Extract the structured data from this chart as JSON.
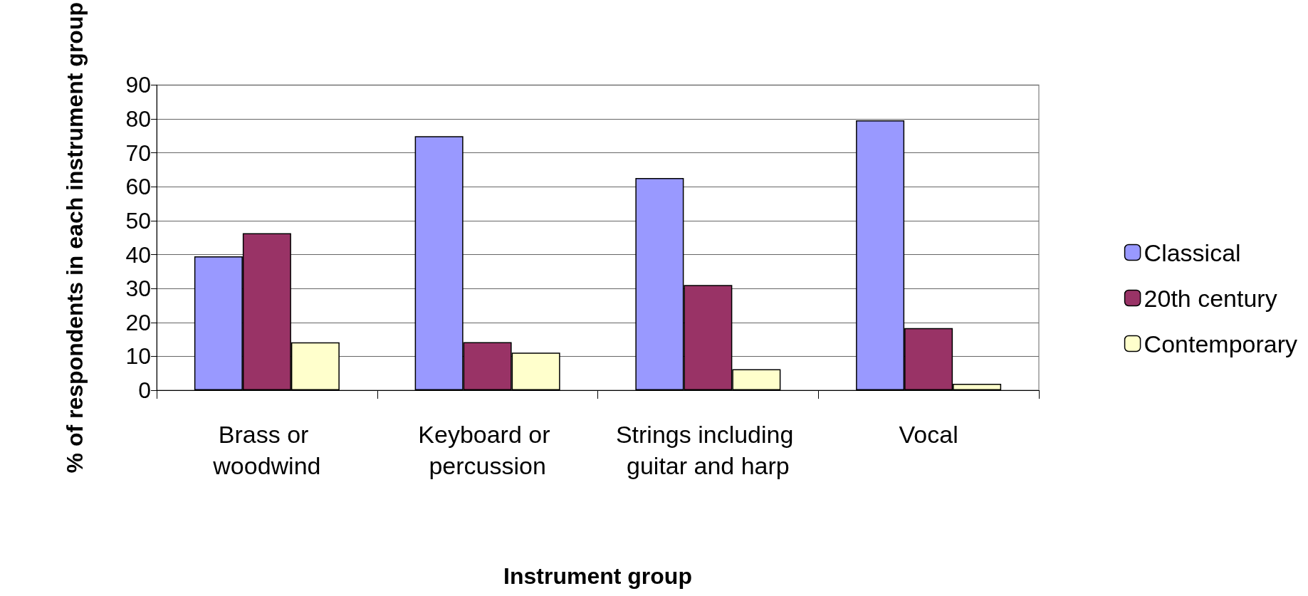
{
  "chart_data": {
    "type": "bar",
    "xlabel": "Instrument group",
    "ylabel": "% of respondents in each instrument group",
    "categories": [
      "Brass or woodwind",
      "Keyboard or percussion",
      "Strings including guitar and harp",
      "Vocal"
    ],
    "series": [
      {
        "name": "Classical",
        "color": "#9999ff",
        "values": [
          39.5,
          74.9,
          62.6,
          79.6
        ]
      },
      {
        "name": "20th century",
        "color": "#993366",
        "values": [
          46.3,
          14.2,
          31.0,
          18.3
        ]
      },
      {
        "name": "Contemporary",
        "color": "#ffffcc",
        "values": [
          14.1,
          11.1,
          6.2,
          1.9
        ]
      }
    ],
    "ylim": [
      0,
      90
    ],
    "yticks": [
      0,
      10,
      20,
      30,
      40,
      50,
      60,
      70,
      80,
      90
    ],
    "grid": "y",
    "legend": "right"
  }
}
